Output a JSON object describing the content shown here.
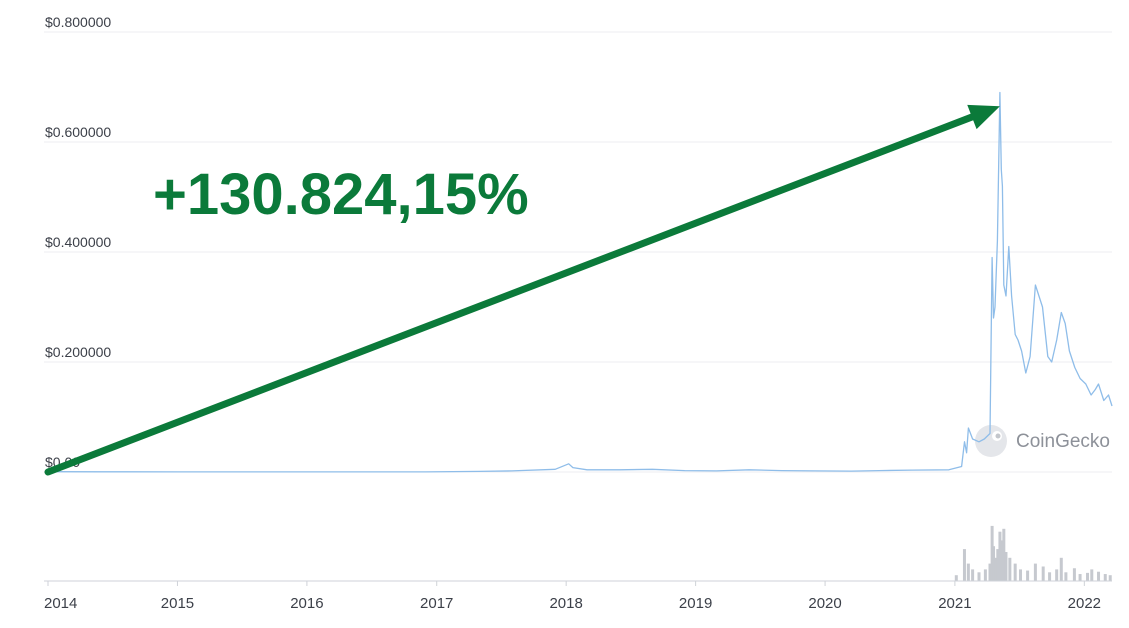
{
  "chart_data": {
    "type": "line",
    "title": "",
    "xlabel": "",
    "ylabel": "",
    "ylim": [
      0,
      0.8
    ],
    "xlim": [
      "2014-01-01",
      "2022-03-20"
    ],
    "y_ticks": [
      {
        "label": "$0.800000",
        "value": 0.8
      },
      {
        "label": "$0.600000",
        "value": 0.6
      },
      {
        "label": "$0.400000",
        "value": 0.4
      },
      {
        "label": "$0.200000",
        "value": 0.2
      },
      {
        "label": "$0.00",
        "value": 0.0
      }
    ],
    "x_ticks": [
      {
        "label": "2014",
        "date": "2014-01-01"
      },
      {
        "label": "2015",
        "date": "2015-01-01"
      },
      {
        "label": "2016",
        "date": "2016-01-01"
      },
      {
        "label": "2017",
        "date": "2017-01-01"
      },
      {
        "label": "2018",
        "date": "2018-01-01"
      },
      {
        "label": "2019",
        "date": "2019-01-01"
      },
      {
        "label": "2020",
        "date": "2020-01-01"
      },
      {
        "label": "2021",
        "date": "2021-01-01"
      },
      {
        "label": "2022",
        "date": "2022-01-01"
      }
    ],
    "grid": true,
    "series": [
      {
        "line_color": "#8fbde9",
        "points": [
          [
            "2014-01-01",
            0.0005
          ],
          [
            "2014-06-01",
            0.0004
          ],
          [
            "2015-01-01",
            0.0002
          ],
          [
            "2016-01-01",
            0.0002
          ],
          [
            "2016-12-01",
            0.0002
          ],
          [
            "2017-05-01",
            0.001
          ],
          [
            "2017-08-01",
            0.002
          ],
          [
            "2017-12-01",
            0.005
          ],
          [
            "2018-01-08",
            0.015
          ],
          [
            "2018-01-20",
            0.008
          ],
          [
            "2018-03-01",
            0.004
          ],
          [
            "2018-06-01",
            0.004
          ],
          [
            "2018-09-01",
            0.005
          ],
          [
            "2018-12-01",
            0.0025
          ],
          [
            "2019-03-01",
            0.002
          ],
          [
            "2019-06-01",
            0.004
          ],
          [
            "2019-09-01",
            0.0025
          ],
          [
            "2019-12-01",
            0.002
          ],
          [
            "2020-03-15",
            0.0017
          ],
          [
            "2020-06-01",
            0.0025
          ],
          [
            "2020-09-01",
            0.0035
          ],
          [
            "2020-12-15",
            0.004
          ],
          [
            "2021-01-20",
            0.01
          ],
          [
            "2021-01-28",
            0.055
          ],
          [
            "2021-02-03",
            0.035
          ],
          [
            "2021-02-08",
            0.08
          ],
          [
            "2021-02-20",
            0.06
          ],
          [
            "2021-03-10",
            0.055
          ],
          [
            "2021-03-25",
            0.06
          ],
          [
            "2021-04-10",
            0.07
          ],
          [
            "2021-04-16",
            0.39
          ],
          [
            "2021-04-20",
            0.28
          ],
          [
            "2021-04-24",
            0.3
          ],
          [
            "2021-05-01",
            0.42
          ],
          [
            "2021-05-08",
            0.69
          ],
          [
            "2021-05-12",
            0.55
          ],
          [
            "2021-05-15",
            0.52
          ],
          [
            "2021-05-19",
            0.34
          ],
          [
            "2021-05-25",
            0.32
          ],
          [
            "2021-06-02",
            0.41
          ],
          [
            "2021-06-10",
            0.32
          ],
          [
            "2021-06-20",
            0.25
          ],
          [
            "2021-06-28",
            0.24
          ],
          [
            "2021-07-08",
            0.22
          ],
          [
            "2021-07-20",
            0.18
          ],
          [
            "2021-08-01",
            0.21
          ],
          [
            "2021-08-16",
            0.34
          ],
          [
            "2021-09-05",
            0.3
          ],
          [
            "2021-09-20",
            0.21
          ],
          [
            "2021-10-01",
            0.2
          ],
          [
            "2021-10-15",
            0.24
          ],
          [
            "2021-10-28",
            0.29
          ],
          [
            "2021-11-08",
            0.27
          ],
          [
            "2021-11-20",
            0.22
          ],
          [
            "2021-12-05",
            0.19
          ],
          [
            "2021-12-20",
            0.17
          ],
          [
            "2022-01-05",
            0.16
          ],
          [
            "2022-01-20",
            0.14
          ],
          [
            "2022-02-01",
            0.15
          ],
          [
            "2022-02-10",
            0.16
          ],
          [
            "2022-02-25",
            0.13
          ],
          [
            "2022-03-10",
            0.14
          ],
          [
            "2022-03-20",
            0.12
          ]
        ]
      }
    ],
    "volume": {
      "bar_color": "#c6c9cf",
      "bars": [
        [
          "2021-01-05",
          0.1
        ],
        [
          "2021-01-28",
          0.55
        ],
        [
          "2021-02-08",
          0.3
        ],
        [
          "2021-02-20",
          0.2
        ],
        [
          "2021-03-10",
          0.15
        ],
        [
          "2021-03-28",
          0.2
        ],
        [
          "2021-04-10",
          0.3
        ],
        [
          "2021-04-16",
          0.95
        ],
        [
          "2021-04-20",
          0.6
        ],
        [
          "2021-04-28",
          0.4
        ],
        [
          "2021-05-02",
          0.55
        ],
        [
          "2021-05-08",
          0.85
        ],
        [
          "2021-05-12",
          0.7
        ],
        [
          "2021-05-19",
          0.9
        ],
        [
          "2021-05-25",
          0.5
        ],
        [
          "2021-06-05",
          0.4
        ],
        [
          "2021-06-20",
          0.3
        ],
        [
          "2021-07-05",
          0.2
        ],
        [
          "2021-07-25",
          0.18
        ],
        [
          "2021-08-16",
          0.3
        ],
        [
          "2021-09-07",
          0.25
        ],
        [
          "2021-09-25",
          0.15
        ],
        [
          "2021-10-15",
          0.2
        ],
        [
          "2021-10-28",
          0.4
        ],
        [
          "2021-11-10",
          0.15
        ],
        [
          "2021-12-04",
          0.22
        ],
        [
          "2021-12-20",
          0.12
        ],
        [
          "2022-01-10",
          0.14
        ],
        [
          "2022-01-22",
          0.2
        ],
        [
          "2022-02-10",
          0.16
        ],
        [
          "2022-03-01",
          0.12
        ],
        [
          "2022-03-15",
          0.1
        ]
      ]
    },
    "annotation": {
      "text": "+130.824,15%",
      "color": "#0b7a3a",
      "arrow_from": [
        "2014-01-01",
        0.0
      ],
      "arrow_to": [
        "2021-05-08",
        0.665
      ]
    },
    "watermark": "CoinGecko"
  }
}
